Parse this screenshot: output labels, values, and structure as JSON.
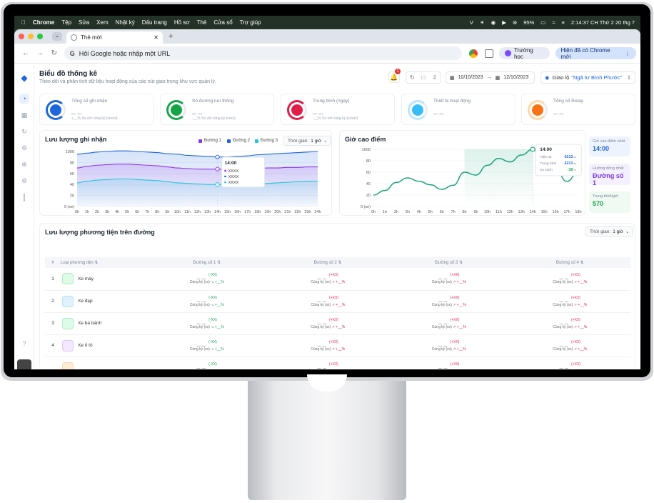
{
  "menubar": {
    "app": "Chrome",
    "items": [
      "Tệp",
      "Sửa",
      "Xem",
      "Nhật ký",
      "Dấu trang",
      "Hồ sơ",
      "Thẻ",
      "Cửa sổ",
      "Trợ giúp"
    ],
    "battery": "95%",
    "clock": "2:14:37 CH Thứ 2 20 thg 7"
  },
  "browser": {
    "tab_title": "Thẻ mới",
    "omnibox_placeholder": "Hỏi Google hoặc nhập một URL",
    "school_label": "Trường học",
    "update_label": "Hiện đã có Chrome mới"
  },
  "header": {
    "title": "Biểu đồ thống kê",
    "subtitle": "Theo dõi và phân tích dữ liệu hoạt động của các nút giao trong khu vực quản lý.",
    "notification_count": "1",
    "date_from": "10/10/2023",
    "date_to": "12/10/2023",
    "junction_label": "Giao lộ",
    "junction_value": "\"Ngã tư Bình Phước\""
  },
  "cards": [
    {
      "title": "Tổng số ghi nhận",
      "value": "_ _",
      "compare": "+__% So với cùng kỳ (xxxxx)",
      "color": "#1e66e0",
      "ring": "#1e66e0"
    },
    {
      "title": "Số đường lưu thông",
      "value": "_ _",
      "compare": "-__% So với cùng kỳ (xxxx)",
      "color": "#16a34a",
      "ring": "#16a34a"
    },
    {
      "title": "Trung bình (ngày)",
      "value": "_ _",
      "compare": "-__% So với cùng kỳ (xxxxx)",
      "color": "#e11d48",
      "ring": "#e11d48"
    },
    {
      "title": "Thiết bị hoạt động",
      "value": "_ _",
      "compare": "",
      "color": "#38bdf8",
      "ring": "#bae6fd"
    },
    {
      "title": "Tổng số Relay",
      "value": "_ _",
      "compare": "",
      "color": "#f97316",
      "ring": "#fed7aa"
    }
  ],
  "flow_chart": {
    "title": "Lưu lượng ghi nhận",
    "time_label": "Thời gian:",
    "time_value": "1 giờ",
    "tooltip_time": "14:00",
    "tooltip_values": [
      "XXXX",
      "XXXX",
      "XXXX"
    ]
  },
  "peak_chart": {
    "title": "Giờ cao điểm",
    "tooltip_time": "14:00",
    "tooltip_rows": [
      {
        "label": "Hiện tại",
        "value": "6213",
        "unit": "xe"
      },
      {
        "label": "Trung bình",
        "value": "6213",
        "unit": "xe"
      },
      {
        "label": "So sánh",
        "value": "-18",
        "unit": "%"
      }
    ]
  },
  "side_stats": [
    {
      "label": "Giờ cao điểm nhất",
      "value": "14:00",
      "color": "#1e66e0",
      "bg": "#eef4ff"
    },
    {
      "label": "Hướng đông nhất",
      "value": "Đường số 1",
      "color": "#7c3aed",
      "bg": "#f5f0ff"
    },
    {
      "label": "Trung bình/giờ",
      "value": "570",
      "color": "#16a34a",
      "bg": "#effaf3"
    }
  ],
  "chart_data": [
    {
      "type": "area",
      "title": "Lưu lượng ghi nhận",
      "x": [
        "0h",
        "1h",
        "2h",
        "3h",
        "4h",
        "5h",
        "6h",
        "7h",
        "8h",
        "9h",
        "10h",
        "11h",
        "12h",
        "13h",
        "14h",
        "15h",
        "16h",
        "17h",
        "18h",
        "19h",
        "20h",
        "21h",
        "22h",
        "23h",
        "24h"
      ],
      "xlabel_unit": "0 (xe)",
      "yticks": [
        0,
        20,
        40,
        60,
        80,
        100,
        1000
      ],
      "legend": [
        "Đường 1",
        "Đường 2",
        "Đường 3"
      ],
      "series": [
        {
          "name": "Đường 2",
          "color": "#1e66e0",
          "values": [
            95,
            97,
            99,
            100,
            101,
            101,
            100,
            99,
            98,
            96,
            95,
            93,
            92,
            91,
            90,
            90,
            91,
            92,
            94,
            95,
            96,
            97,
            98,
            99,
            100
          ]
        },
        {
          "name": "Đường 1",
          "color": "#9333ea",
          "values": [
            70,
            73,
            75,
            76,
            77,
            77,
            76,
            75,
            74,
            72,
            70,
            69,
            68,
            68,
            68,
            68,
            68,
            69,
            69,
            70,
            70,
            71,
            71,
            72,
            72
          ]
        },
        {
          "name": "Đường 3",
          "color": "#22c7d9",
          "values": [
            43,
            46,
            48,
            49,
            50,
            50,
            49,
            48,
            47,
            45,
            43,
            42,
            41,
            40,
            40,
            40,
            40,
            41,
            41,
            42,
            43,
            44,
            45,
            46,
            46
          ]
        }
      ]
    },
    {
      "type": "line",
      "title": "Giờ cao điểm",
      "x": [
        "0h",
        "1h",
        "2h",
        "3h",
        "4h",
        "5h",
        "6h",
        "7h",
        "8h",
        "9h",
        "10h",
        "11h",
        "12h",
        "13h",
        "14h",
        "15h",
        "16h",
        "17h",
        "18h"
      ],
      "xlabel_unit": "0 (xe)",
      "yticks": [
        0,
        20,
        40,
        60,
        80,
        100,
        1000
      ],
      "series": [
        {
          "name": "",
          "color": "#1aa37a",
          "values": [
            20,
            28,
            42,
            50,
            44,
            38,
            30,
            37,
            60,
            55,
            72,
            84,
            78,
            90,
            100,
            74,
            64,
            44,
            60
          ]
        }
      ]
    }
  ],
  "table": {
    "title": "Lưu lượng phương tiện trên đường",
    "time_label": "Thời gian:",
    "time_value": "1 giờ",
    "headers": [
      "#",
      "Loại phương tiện",
      "Đường số 1",
      "Đường số 2",
      "Đường số 3",
      "Đường số 4"
    ],
    "rows": [
      {
        "n": "1",
        "name": "Xe máy",
        "color": "#16a34a",
        "bg": "#dcfce7"
      },
      {
        "n": "2",
        "name": "Xe đạp",
        "color": "#0ea5e9",
        "bg": "#e0f2fe"
      },
      {
        "n": "3",
        "name": "Xe ba bánh",
        "color": "#16a34a",
        "bg": "#dcfce7"
      },
      {
        "n": "4",
        "name": "Xe ô tô",
        "color": "#9333ea",
        "bg": "#f3e8ff"
      },
      {
        "n": "",
        "name": "",
        "color": "#f97316",
        "bg": "#ffedd5"
      }
    ],
    "cell_value": "_ _",
    "change_up": "(+XX)",
    "change_plain": "(-XX)",
    "compare": "Cùng kỳ (xx)",
    "trend": "+__%"
  }
}
